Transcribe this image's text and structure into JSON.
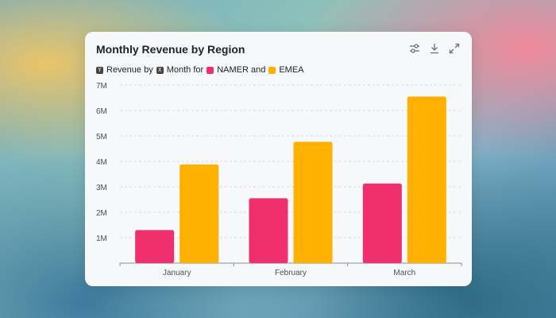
{
  "card": {
    "title": "Monthly Revenue by Region",
    "toolbar": [
      {
        "icon": "sliders-icon"
      },
      {
        "icon": "download-icon"
      },
      {
        "icon": "expand-icon"
      }
    ]
  },
  "legend": {
    "y_badge": "Y",
    "y_text": "Revenue by",
    "x_badge": "X",
    "x_text": "Month for",
    "series_1": "NAMER and",
    "series_2": "EMEA"
  },
  "colors": {
    "namer": "#f0306e",
    "emea": "#ffb000",
    "grid": "#dadde2",
    "axis": "#8a8f96"
  },
  "chart_data": {
    "type": "bar",
    "title": "Monthly Revenue by Region",
    "categories": [
      "January",
      "February",
      "March"
    ],
    "series": [
      {
        "name": "NAMER",
        "values": [
          1300000,
          2550000,
          3130000
        ]
      },
      {
        "name": "EMEA",
        "values": [
          3880000,
          4770000,
          6550000
        ]
      }
    ],
    "yticks": [
      "1M",
      "2M",
      "3M",
      "4M",
      "5M",
      "6M",
      "7M"
    ],
    "ylim": [
      0,
      7000000
    ],
    "grid": true,
    "legend_position": "top-left"
  }
}
